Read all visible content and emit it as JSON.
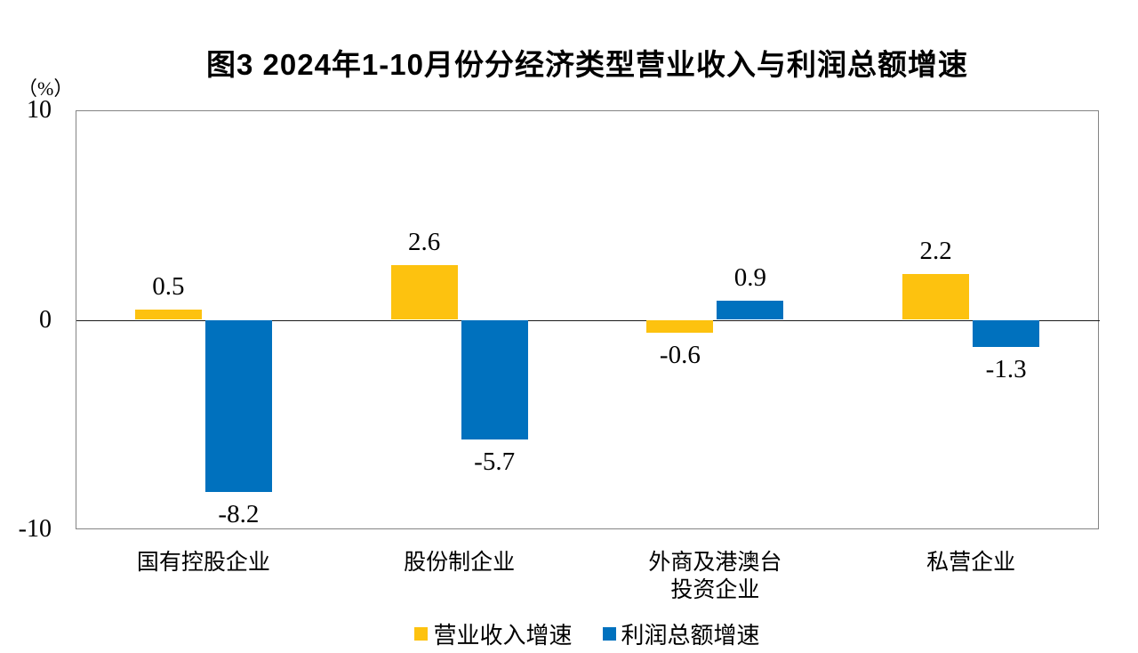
{
  "chart_data": {
    "type": "bar",
    "title": "图3 2024年1-10月份分经济类型营业收入与利润总额增速",
    "ylabel": "（%）",
    "xlabel": "",
    "categories": [
      "国有控股企业",
      "股份制企业",
      "外商及港澳台\n投资企业",
      "私营企业"
    ],
    "series": [
      {
        "name": "营业收入增速",
        "color": "#FDC20F",
        "values": [
          0.5,
          2.6,
          -0.6,
          2.2
        ]
      },
      {
        "name": "利润总额增速",
        "color": "#0071BE",
        "values": [
          -8.2,
          -5.7,
          0.9,
          -1.3
        ]
      }
    ],
    "ylim": [
      -10,
      10
    ],
    "yticks": [
      10,
      0,
      -10
    ],
    "grid": false,
    "legend_position": "bottom",
    "value_labels": {
      "营业收入增速": [
        "0.5",
        "2.6",
        "-0.6",
        "2.2"
      ],
      "利润总额增速": [
        "-8.2",
        "-5.7",
        "0.9",
        "-1.3"
      ]
    }
  }
}
